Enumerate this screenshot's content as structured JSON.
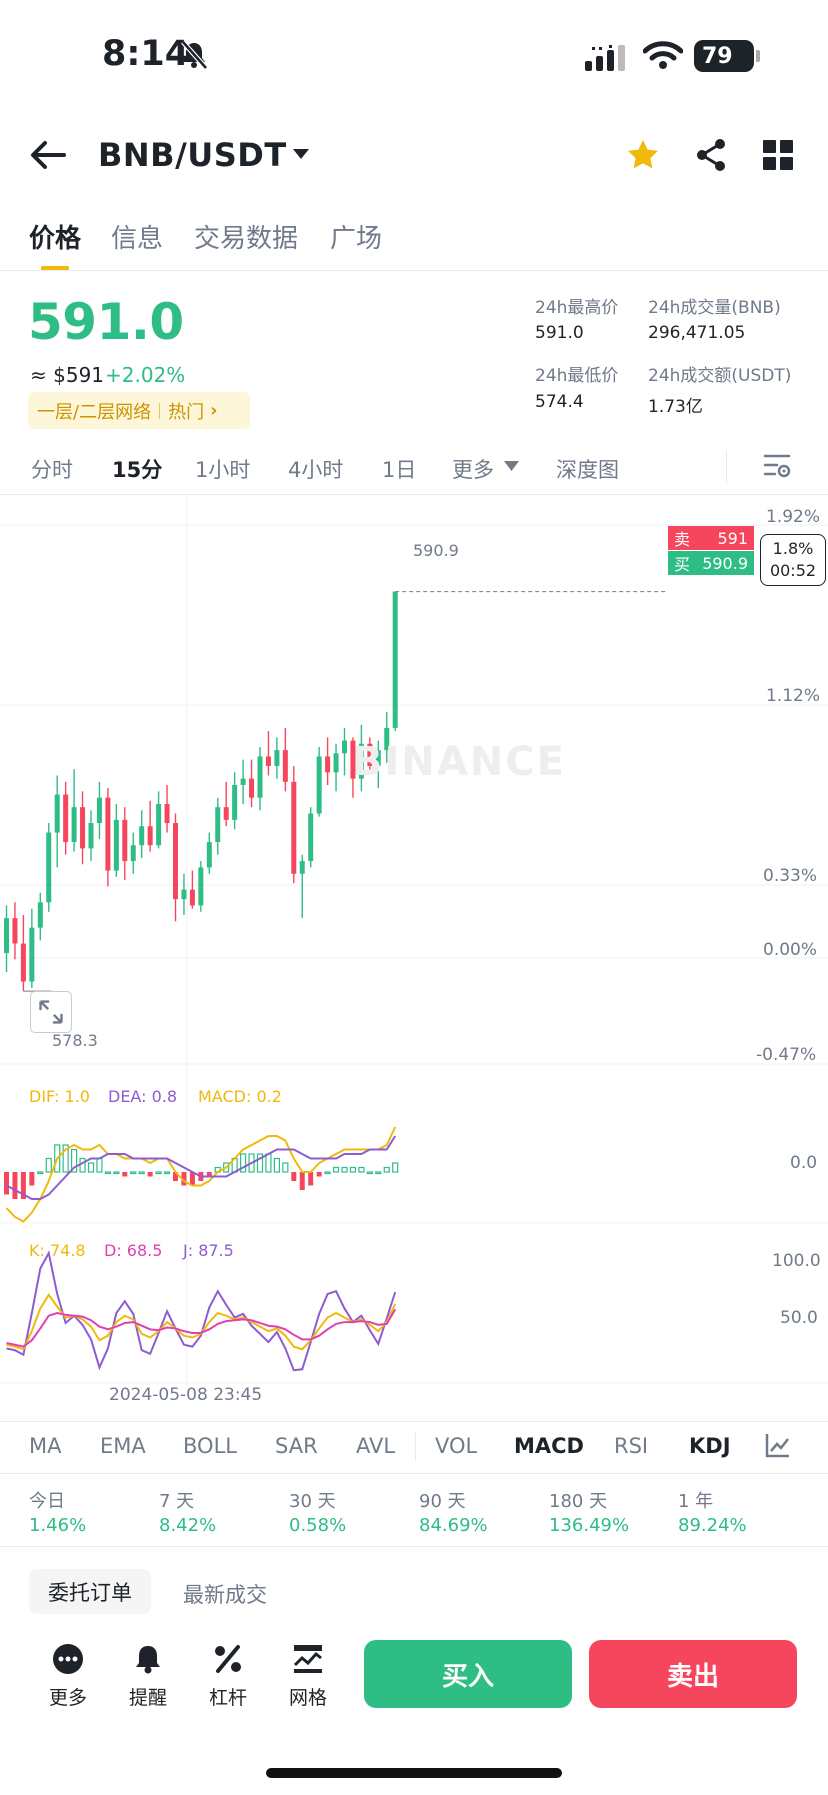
{
  "status_bar": {
    "time": "8:14",
    "battery": "79"
  },
  "header": {
    "pair": "BNB/USDT"
  },
  "tabs": [
    {
      "label": "价格",
      "active": true
    },
    {
      "label": "信息"
    },
    {
      "label": "交易数据"
    },
    {
      "label": "广场"
    }
  ],
  "price_block": {
    "last_price": "591.0",
    "usd_price": "≈ $591",
    "change": "+2.02%",
    "network_tag": "一层/二层网络",
    "hot_tag": "热门",
    "stats": {
      "high_label": "24h最高价",
      "high_value": "591.0",
      "volume_bnb_label": "24h成交量(BNB)",
      "volume_bnb_value": "296,471.05",
      "low_label": "24h最低价",
      "low_value": "574.4",
      "volume_usdt_label": "24h成交额(USDT)",
      "volume_usdt_value": "1.73亿"
    }
  },
  "timeframes": [
    {
      "label": "分时"
    },
    {
      "label": "15分",
      "active": true
    },
    {
      "label": "1小时"
    },
    {
      "label": "4小时"
    },
    {
      "label": "1日"
    },
    {
      "label": "更多"
    },
    {
      "label": "深度图"
    }
  ],
  "chart": {
    "watermark": "BINANCE",
    "sell_label": "卖",
    "sell_price": "591",
    "buy_label": "买",
    "buy_price": "590.9",
    "last_line_price": "590.9",
    "countdown_pct": "1.8%",
    "countdown_time": "00:52",
    "low_marker": "578.3",
    "date_label": "2024-05-08 23:45",
    "right_axis": [
      "1.92%",
      "1.12%",
      "0.33%",
      "0.00%",
      "-0.47%"
    ],
    "macd": {
      "dif": "DIF: 1.0",
      "dea": "DEA: 0.8",
      "macd": "MACD: 0.2",
      "axis_zero": "0.0"
    },
    "kdj": {
      "k": "K: 74.8",
      "d": "D: 68.5",
      "j": "J: 87.5",
      "axis_100": "100.0",
      "axis_50": "50.0"
    },
    "colors": {
      "up": "#2ebd85",
      "down": "#f6465d",
      "dif": "#f0b90b",
      "dea": "#8e5cd1",
      "kline_k": "#f0b90b",
      "kline_d": "#e040b4",
      "kline_j": "#8e5cd1"
    }
  },
  "chart_data": {
    "type": "candlestick",
    "interval": "15分",
    "candles": [
      [
        579.5,
        581.0,
        578.9,
        580.6
      ],
      [
        580.6,
        581.1,
        579.3,
        579.8
      ],
      [
        579.8,
        580.7,
        578.3,
        578.6
      ],
      [
        578.6,
        580.9,
        578.4,
        580.3
      ],
      [
        580.3,
        581.4,
        579.9,
        581.1
      ],
      [
        581.1,
        583.6,
        580.8,
        583.3
      ],
      [
        583.3,
        585.1,
        582.2,
        584.5
      ],
      [
        584.5,
        584.9,
        582.6,
        583.0
      ],
      [
        583.0,
        585.3,
        582.7,
        584.1
      ],
      [
        584.1,
        584.6,
        582.3,
        582.8
      ],
      [
        582.8,
        584.0,
        582.4,
        583.6
      ],
      [
        583.6,
        584.9,
        583.1,
        584.4
      ],
      [
        584.4,
        584.7,
        581.6,
        582.1
      ],
      [
        582.1,
        584.2,
        581.9,
        583.7
      ],
      [
        583.7,
        584.1,
        581.8,
        582.4
      ],
      [
        582.4,
        583.3,
        582.0,
        582.9
      ],
      [
        582.9,
        584.0,
        582.5,
        583.5
      ],
      [
        583.5,
        584.3,
        582.7,
        582.9
      ],
      [
        582.9,
        584.6,
        582.8,
        584.2
      ],
      [
        584.2,
        584.8,
        583.3,
        583.6
      ],
      [
        583.6,
        583.9,
        580.5,
        581.2
      ],
      [
        581.2,
        582.0,
        580.7,
        581.5
      ],
      [
        581.5,
        582.1,
        580.9,
        581.0
      ],
      [
        581.0,
        582.4,
        580.8,
        582.2
      ],
      [
        582.2,
        583.3,
        582.0,
        583.0
      ],
      [
        583.0,
        584.4,
        582.6,
        584.1
      ],
      [
        584.1,
        584.9,
        583.5,
        583.7
      ],
      [
        583.7,
        585.2,
        583.4,
        584.8
      ],
      [
        584.8,
        585.6,
        584.2,
        585.0
      ],
      [
        585.0,
        585.6,
        584.1,
        584.4
      ],
      [
        584.4,
        586.0,
        584.0,
        585.7
      ],
      [
        585.7,
        586.5,
        585.1,
        585.4
      ],
      [
        585.4,
        586.3,
        585.0,
        585.9
      ],
      [
        585.9,
        586.6,
        584.6,
        584.9
      ],
      [
        584.9,
        585.4,
        581.7,
        582.0
      ],
      [
        582.0,
        582.6,
        580.6,
        582.4
      ],
      [
        582.4,
        584.1,
        582.2,
        583.9
      ],
      [
        583.9,
        586.0,
        583.8,
        585.7
      ],
      [
        585.7,
        586.3,
        584.8,
        585.2
      ],
      [
        585.2,
        586.1,
        584.6,
        585.8
      ],
      [
        585.8,
        586.6,
        585.1,
        586.2
      ],
      [
        586.2,
        586.3,
        584.4,
        585.0
      ],
      [
        585.0,
        586.7,
        584.6,
        586.1
      ],
      [
        586.1,
        586.3,
        585.2,
        585.4
      ],
      [
        585.4,
        586.2,
        584.7,
        585.9
      ],
      [
        585.9,
        587.1,
        585.5,
        586.6
      ],
      [
        586.6,
        590.9,
        586.5,
        590.9
      ]
    ],
    "y_axis_pct": [
      "1.92%",
      "1.12%",
      "0.33%",
      "0.00%",
      "-0.47%"
    ],
    "high_marker": "590.9",
    "low_marker": "578.3",
    "macd": {
      "dif": [
        -0.8,
        -1.0,
        -1.1,
        -0.9,
        -0.6,
        -0.2,
        0.3,
        0.5,
        0.6,
        0.5,
        0.5,
        0.6,
        0.4,
        0.4,
        0.3,
        0.3,
        0.3,
        0.2,
        0.3,
        0.3,
        0.0,
        -0.2,
        -0.3,
        -0.3,
        -0.2,
        0.0,
        0.1,
        0.3,
        0.5,
        0.6,
        0.7,
        0.8,
        0.8,
        0.7,
        0.3,
        0.0,
        0.0,
        0.2,
        0.3,
        0.4,
        0.5,
        0.5,
        0.5,
        0.5,
        0.5,
        0.6,
        1.0
      ],
      "dea": [
        -0.3,
        -0.4,
        -0.5,
        -0.6,
        -0.6,
        -0.5,
        -0.3,
        -0.1,
        0.1,
        0.2,
        0.3,
        0.3,
        0.4,
        0.4,
        0.4,
        0.3,
        0.3,
        0.3,
        0.3,
        0.3,
        0.2,
        0.1,
        0.0,
        -0.1,
        -0.1,
        -0.1,
        -0.1,
        0.0,
        0.1,
        0.2,
        0.3,
        0.4,
        0.5,
        0.5,
        0.5,
        0.4,
        0.3,
        0.3,
        0.3,
        0.3,
        0.4,
        0.4,
        0.4,
        0.5,
        0.5,
        0.5,
        0.8
      ],
      "hist": [
        -0.5,
        -0.6,
        -0.6,
        -0.3,
        0.0,
        0.3,
        0.6,
        0.6,
        0.5,
        0.3,
        0.2,
        0.3,
        0.0,
        0.0,
        -0.1,
        0.0,
        0.0,
        -0.1,
        0.0,
        0.0,
        -0.2,
        -0.3,
        -0.3,
        -0.2,
        -0.1,
        0.1,
        0.2,
        0.3,
        0.4,
        0.4,
        0.4,
        0.4,
        0.3,
        0.2,
        -0.2,
        -0.4,
        -0.3,
        -0.1,
        0.0,
        0.1,
        0.1,
        0.1,
        0.1,
        0.0,
        0.0,
        0.1,
        0.2
      ]
    },
    "kdj": {
      "k": [
        30,
        28,
        25,
        45,
        70,
        85,
        72,
        60,
        62,
        58,
        50,
        35,
        40,
        55,
        62,
        58,
        42,
        38,
        45,
        55,
        48,
        40,
        38,
        42,
        55,
        65,
        62,
        58,
        60,
        55,
        50,
        45,
        48,
        40,
        28,
        25,
        35,
        48,
        60,
        65,
        60,
        55,
        58,
        52,
        45,
        55,
        75
      ],
      "d": [
        32,
        30,
        28,
        35,
        48,
        62,
        65,
        63,
        62,
        61,
        57,
        50,
        47,
        50,
        54,
        55,
        51,
        47,
        46,
        49,
        48,
        45,
        43,
        43,
        47,
        53,
        56,
        57,
        58,
        57,
        54,
        51,
        50,
        47,
        41,
        36,
        36,
        40,
        47,
        53,
        55,
        55,
        56,
        55,
        52,
        53,
        69
      ],
      "j": [
        26,
        24,
        19,
        65,
        114,
        131,
        86,
        54,
        62,
        52,
        36,
        5,
        26,
        65,
        78,
        64,
        24,
        20,
        43,
        67,
        48,
        30,
        28,
        40,
        71,
        89,
        74,
        60,
        64,
        51,
        42,
        33,
        44,
        26,
        2,
        3,
        33,
        64,
        86,
        89,
        70,
        55,
        62,
        46,
        31,
        59,
        88
      ]
    }
  },
  "indicators": [
    {
      "label": "MA"
    },
    {
      "label": "EMA"
    },
    {
      "label": "BOLL"
    },
    {
      "label": "SAR"
    },
    {
      "label": "AVL"
    },
    {
      "label": "VOL"
    },
    {
      "label": "MACD",
      "active": true
    },
    {
      "label": "RSI"
    },
    {
      "label": "KDJ",
      "active": true
    }
  ],
  "performance": [
    {
      "label": "今日",
      "value": "1.46%"
    },
    {
      "label": "7 天",
      "value": "8.42%"
    },
    {
      "label": "30 天",
      "value": "0.58%"
    },
    {
      "label": "90 天",
      "value": "84.69%"
    },
    {
      "label": "180 天",
      "value": "136.49%"
    },
    {
      "label": "1 年",
      "value": "89.24%"
    }
  ],
  "order_tabs": {
    "open_orders": "委托订单",
    "latest_trades": "最新成交"
  },
  "bottom_bar": {
    "more": "更多",
    "alert": "提醒",
    "margin": "杠杆",
    "grid": "网格",
    "buy": "买入",
    "sell": "卖出"
  }
}
